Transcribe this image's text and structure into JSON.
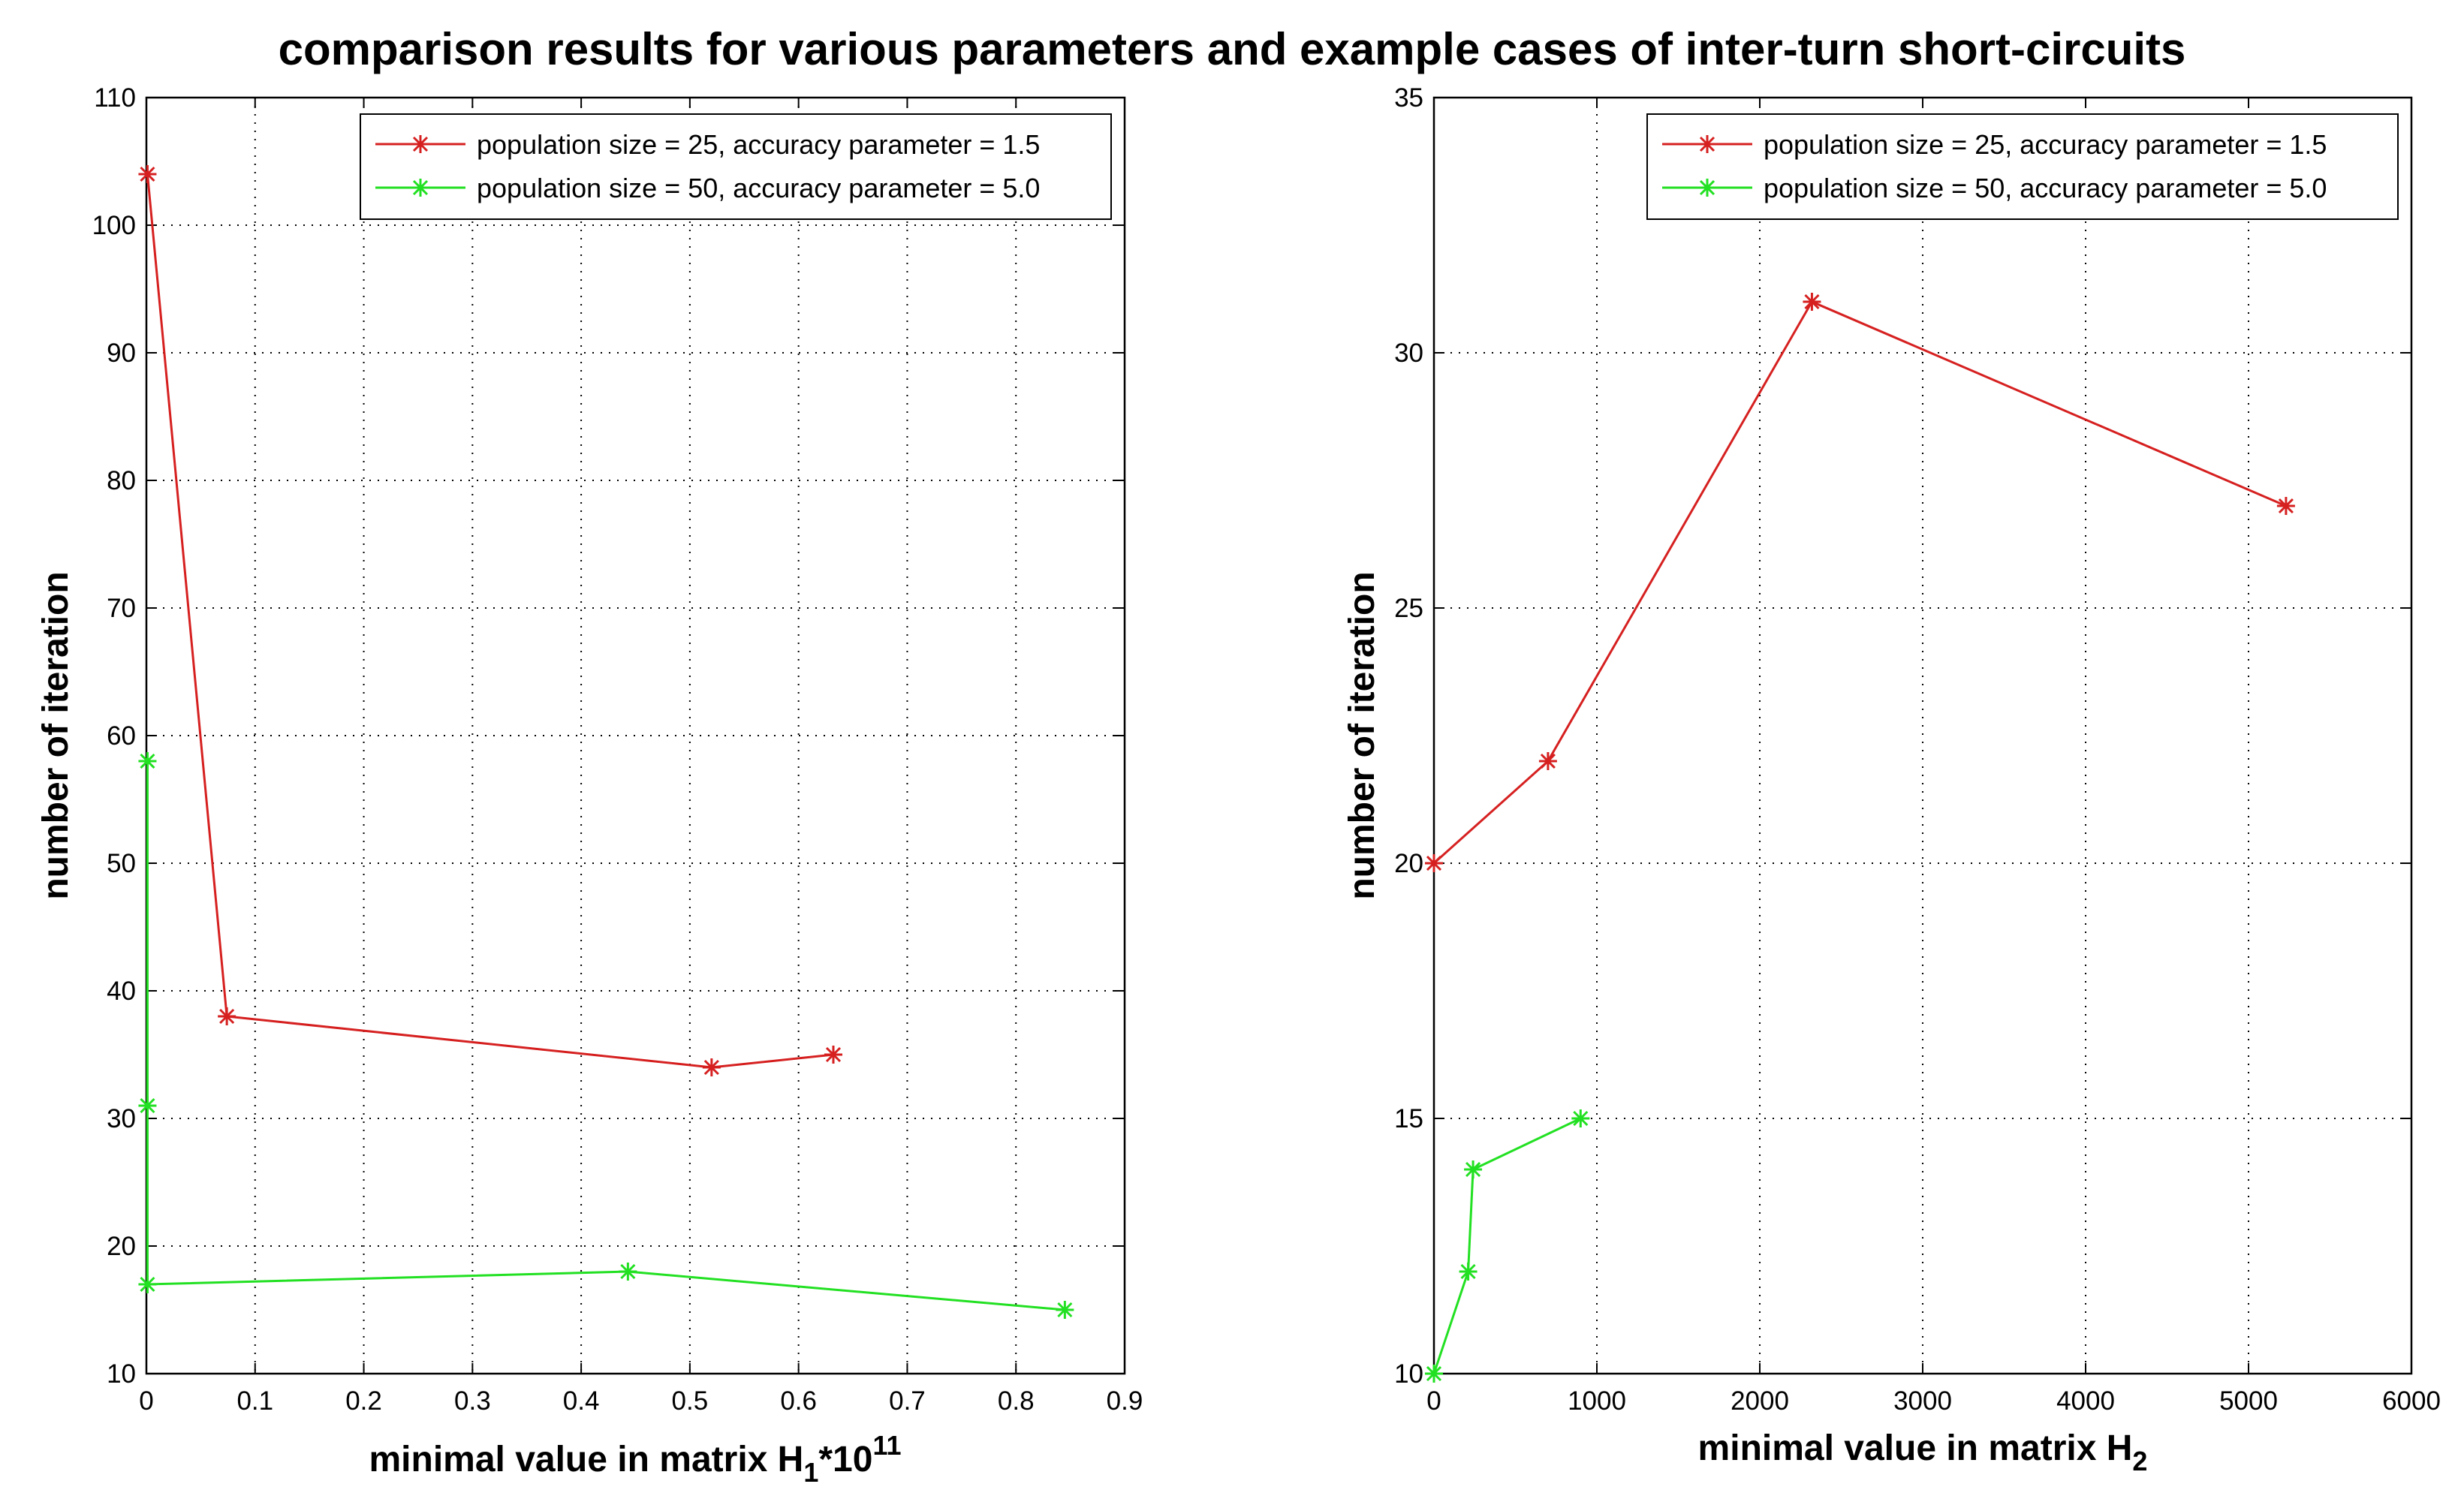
{
  "figure": {
    "title": "comparison results for various parameters and example cases of inter-turn short-circuits"
  },
  "chart_data": [
    {
      "type": "line",
      "xlabel": "minimal value in matrix H",
      "xlabel_sub": "1",
      "xlabel_suffix": "*10",
      "xlabel_sup": "11",
      "ylabel": "number of iteration",
      "xlim": [
        0,
        0.9
      ],
      "ylim": [
        10,
        110
      ],
      "xticks": [
        0,
        0.1,
        0.2,
        0.3,
        0.4,
        0.5,
        0.6,
        0.7,
        0.8,
        0.9
      ],
      "xtick_labels": [
        "0",
        "0.1",
        "0.2",
        "0.3",
        "0.4",
        "0.5",
        "0.6",
        "0.7",
        "0.8",
        "0.9"
      ],
      "yticks": [
        10,
        20,
        30,
        40,
        50,
        60,
        70,
        80,
        90,
        100,
        110
      ],
      "ytick_labels": [
        "10",
        "20",
        "30",
        "40",
        "50",
        "60",
        "70",
        "80",
        "90",
        "100",
        "110"
      ],
      "grid": true,
      "legend_position": "top-right",
      "series": [
        {
          "name": "population size = 25, accuracy parameter = 1.5",
          "color": "#d62020",
          "marker": "*",
          "x": [
            0.001,
            0.074,
            0.52,
            0.632
          ],
          "y": [
            104,
            38,
            34,
            35
          ]
        },
        {
          "name": "population size = 50, accuracy parameter = 5.0",
          "color": "#22e022",
          "marker": "*",
          "x": [
            0.001,
            0.001,
            0.001,
            0.443,
            0.845
          ],
          "y": [
            58,
            31,
            17,
            18,
            15
          ]
        }
      ]
    },
    {
      "type": "line",
      "xlabel": "minimal value in matrix H",
      "xlabel_sub": "2",
      "ylabel": "number of iteration",
      "xlim": [
        0,
        6000
      ],
      "ylim": [
        10,
        35
      ],
      "xticks": [
        0,
        1000,
        2000,
        3000,
        4000,
        5000,
        6000
      ],
      "xtick_labels": [
        "0",
        "1000",
        "2000",
        "3000",
        "4000",
        "5000",
        "6000"
      ],
      "yticks": [
        10,
        15,
        20,
        25,
        30,
        35
      ],
      "ytick_labels": [
        "10",
        "15",
        "20",
        "25",
        "30",
        "35"
      ],
      "grid": true,
      "legend_position": "top-right",
      "series": [
        {
          "name": "population size = 25, accuracy parameter = 1.5",
          "color": "#d62020",
          "marker": "*",
          "x": [
            0,
            700,
            2320,
            5230
          ],
          "y": [
            20,
            22,
            31,
            27
          ]
        },
        {
          "name": "population size = 50, accuracy parameter = 5.0",
          "color": "#22e022",
          "marker": "*",
          "x": [
            0,
            210,
            240,
            900
          ],
          "y": [
            10,
            12,
            14,
            15
          ]
        }
      ]
    }
  ]
}
